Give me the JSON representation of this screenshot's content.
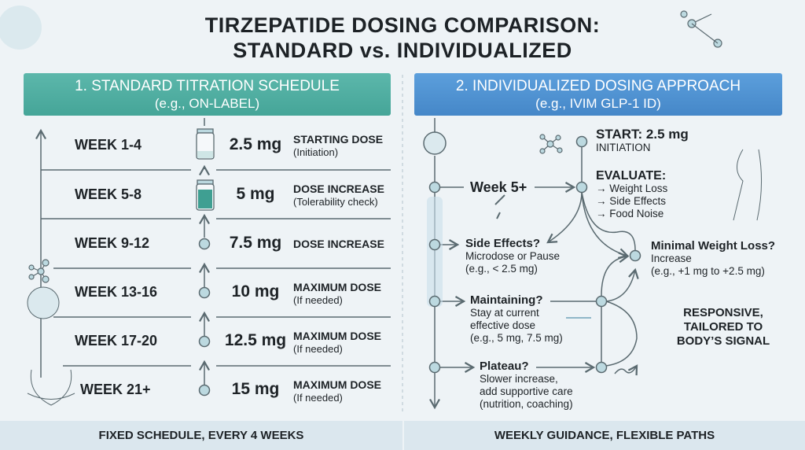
{
  "title": {
    "line1": "TIRZEPATIDE DOSING COMPARISON:",
    "line2": "STANDARD vs. INDIVIDUALIZED"
  },
  "standard": {
    "header": "1. STANDARD TITRATION SCHEDULE",
    "subheader": "(e.g., ON-LABEL)",
    "rows": [
      {
        "week": "WEEK 1-4",
        "dose": "2.5 mg",
        "label": "STARTING DOSE",
        "note": "(Initiation)",
        "icon": "vial-empty-icon"
      },
      {
        "week": "WEEK 5-8",
        "dose": "5 mg",
        "label": "DOSE INCREASE",
        "note": "(Tolerability check)",
        "icon": "vial-filled-icon"
      },
      {
        "week": "WEEK 9-12",
        "dose": "7.5 mg",
        "label": "DOSE INCREASE",
        "note": "",
        "icon": "node-icon"
      },
      {
        "week": "WEEK 13-16",
        "dose": "10 mg",
        "label": "MAXIMUM DOSE",
        "note": "(If needed)",
        "icon": "node-icon"
      },
      {
        "week": "WEEK 17-20",
        "dose": "12.5 mg",
        "label": "MAXIMUM DOSE",
        "note": "(If needed)",
        "icon": "node-icon"
      },
      {
        "week": "WEEK 21+",
        "dose": "15 mg",
        "label": "MAXIMUM DOSE",
        "note": "(If needed)",
        "icon": "node-icon"
      }
    ],
    "footer": "FIXED SCHEDULE, EVERY 4 WEEKS"
  },
  "individualized": {
    "header": "2. INDIVIDUALIZED DOSING APPROACH",
    "subheader": "(e.g., IVIM GLP-1 ID)",
    "start": {
      "title": "START: 2.5 mg",
      "sub": "INITIATION"
    },
    "week": "Week 5+",
    "evaluate": {
      "title": "EVALUATE:",
      "items": [
        "→ Weight Loss",
        "→ Side Effects",
        "→ Food Noise"
      ]
    },
    "side_effects": {
      "title": "Side Effects?",
      "lines": [
        "Microdose or Pause",
        "(e.g., < 2.5 mg)"
      ]
    },
    "minimal": {
      "title": "Minimal Weight Loss?",
      "lines": [
        "Increase",
        "(e.g., +1 mg to +2.5 mg)"
      ]
    },
    "maintaining": {
      "title": "Maintaining?",
      "lines": [
        "Stay at current",
        "effective dose",
        "(e.g., 5 mg, 7.5 mg)"
      ]
    },
    "plateau": {
      "title": "Plateau?",
      "lines": [
        "Slower increase,",
        "add supportive care",
        "(nutrition, coaching)"
      ]
    },
    "tagline": [
      "RESPONSIVE,",
      "TAILORED TO",
      "BODY’S SIGNAL"
    ],
    "footer": "WEEKLY GUIDANCE, FLEXIBLE PATHS"
  },
  "colors": {
    "teal": "#4fae a2",
    "blue": "#4a8fd0",
    "node": "#bcd9e0",
    "stroke": "#5a6a70"
  }
}
